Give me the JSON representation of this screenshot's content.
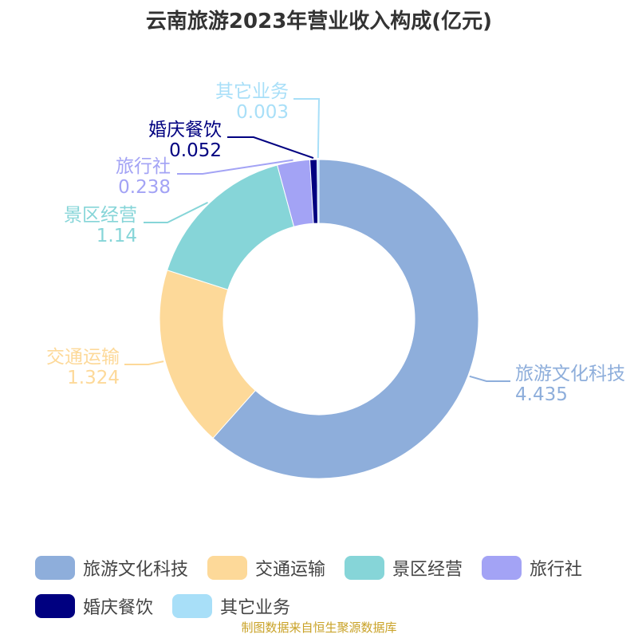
{
  "title": "云南旅游2023年营业收入构成(亿元)",
  "source": "制图数据来自恒生聚源数据库",
  "chart_data": {
    "type": "pie",
    "variant": "donut",
    "title": "云南旅游2023年营业收入构成(亿元)",
    "slices": [
      {
        "name": "旅游文化科技",
        "value": 4.435,
        "value_label": "4.435",
        "color": "#8eaedb"
      },
      {
        "name": "交通运输",
        "value": 1.324,
        "value_label": "1.324",
        "color": "#fdd999"
      },
      {
        "name": "景区经营",
        "value": 1.14,
        "value_label": "1.14",
        "color": "#86d5d8"
      },
      {
        "name": "旅行社",
        "value": 0.238,
        "value_label": "0.238",
        "color": "#a3a3f5"
      },
      {
        "name": "婚庆餐饮",
        "value": 0.052,
        "value_label": "0.052",
        "color": "#000080"
      },
      {
        "name": "其它业务",
        "value": 0.003,
        "value_label": "0.003",
        "color": "#a8dff8"
      }
    ],
    "legend_position": "bottom"
  }
}
